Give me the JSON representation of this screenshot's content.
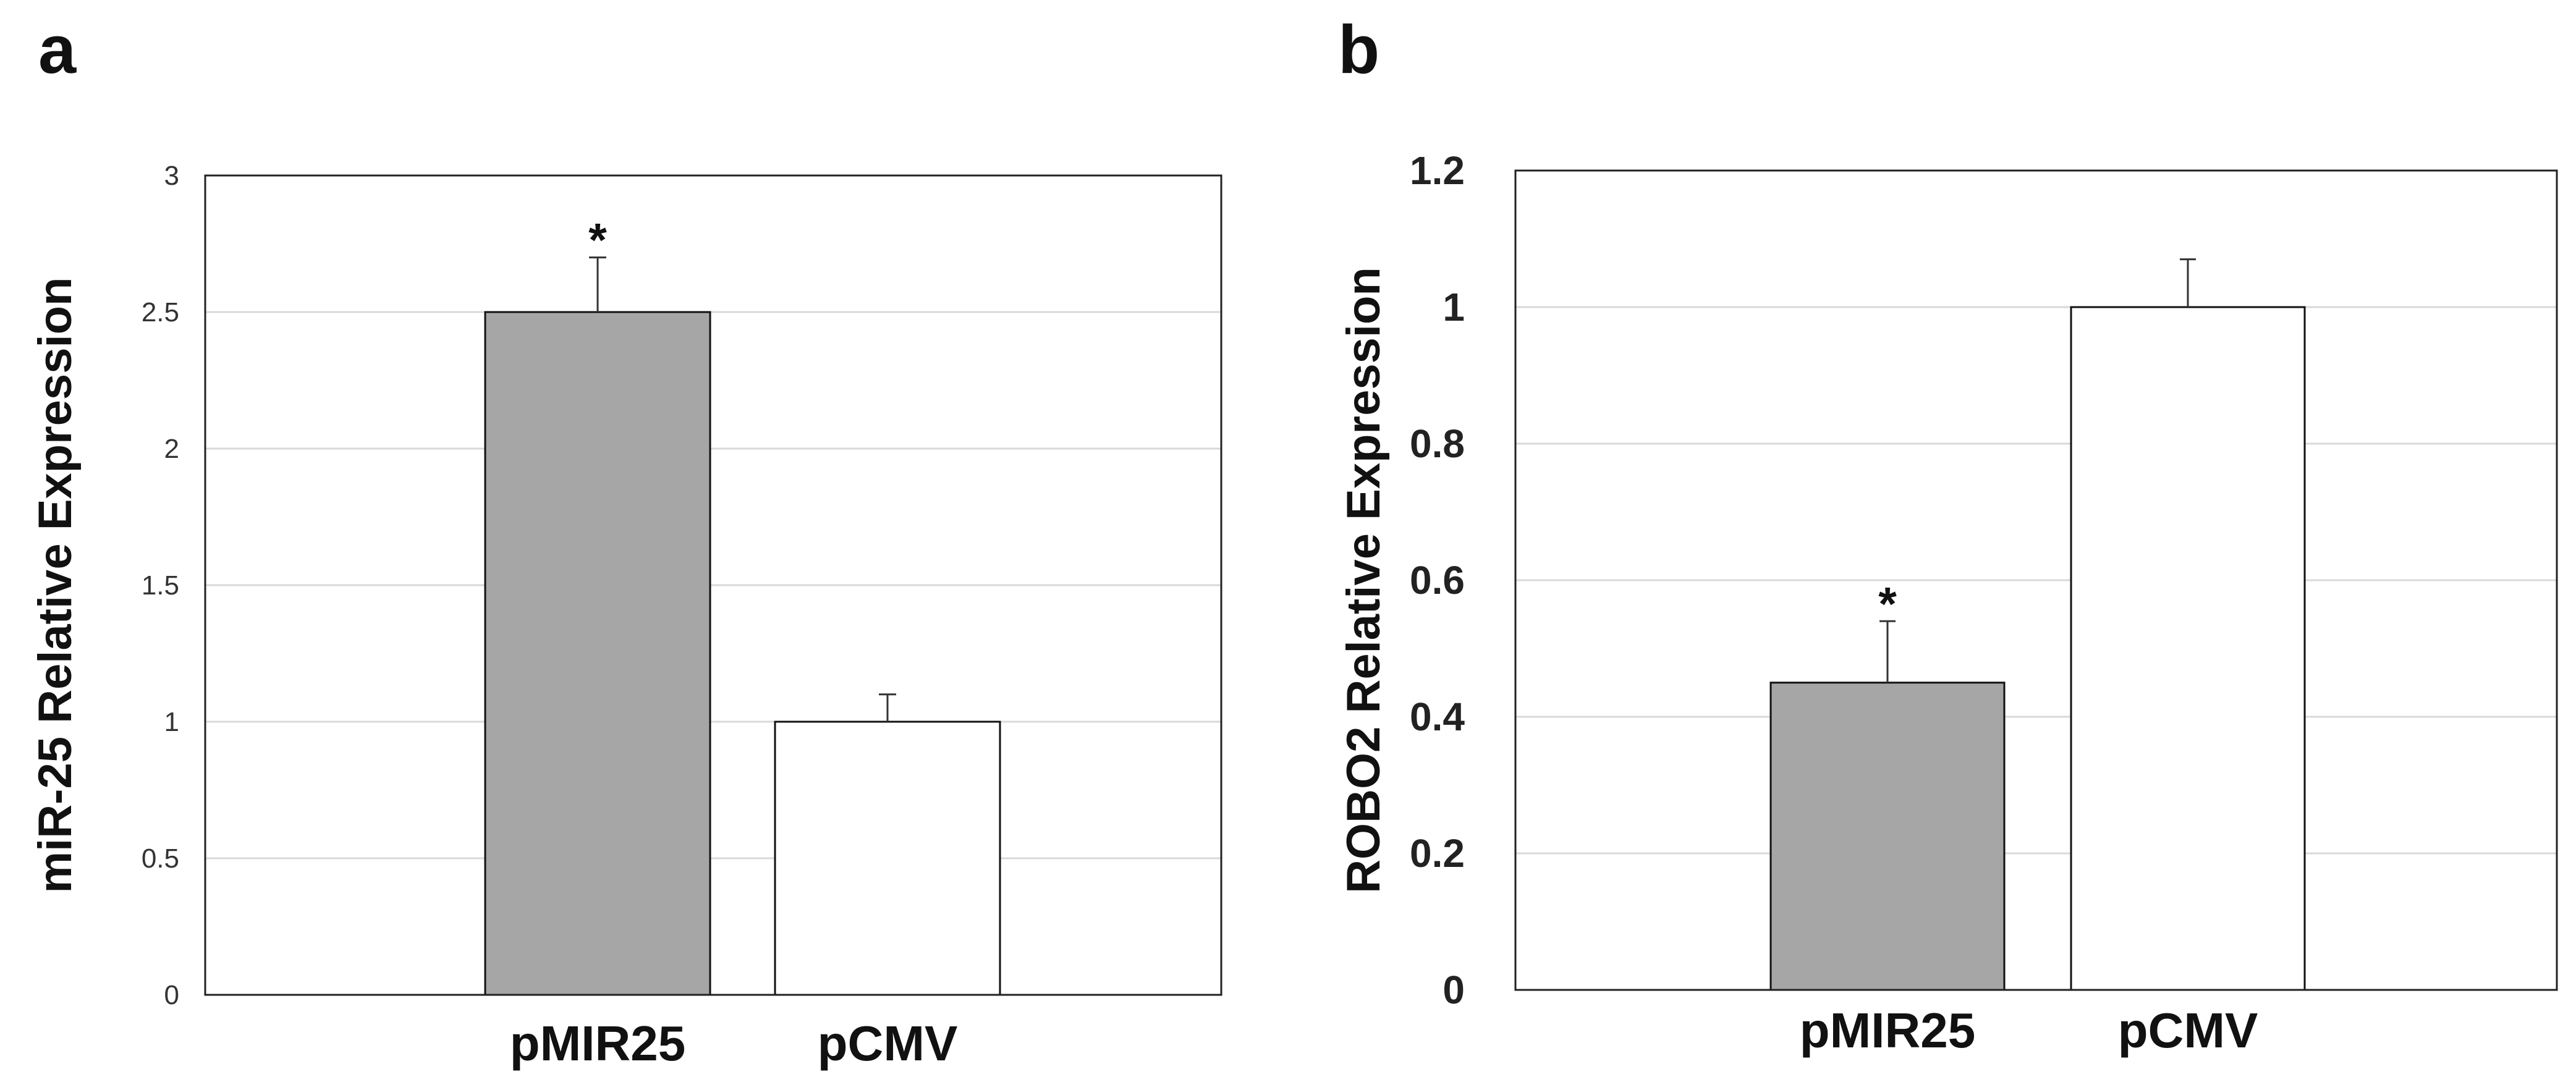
{
  "chart_data": [
    {
      "panel": "a",
      "type": "bar",
      "ylabel": "miR-25 Relative Expression",
      "categories": [
        "pMIR25",
        "pCMV"
      ],
      "values": [
        2.5,
        1.0
      ],
      "errors": [
        0.2,
        0.1
      ],
      "bar_colors": [
        "#a6a6a6",
        "#ffffff"
      ],
      "significance": [
        "*",
        ""
      ],
      "ylim": [
        0,
        3
      ],
      "yticks": [
        0,
        0.5,
        1,
        1.5,
        2,
        2.5,
        3
      ],
      "ytick_labels": [
        "0",
        "0.5",
        "1",
        "1.5",
        "2",
        "2.5",
        "3"
      ],
      "grid": true
    },
    {
      "panel": "b",
      "type": "bar",
      "ylabel": "ROBO2 Relative Expression",
      "categories": [
        "pMIR25",
        "pCMV"
      ],
      "values": [
        0.45,
        1.0
      ],
      "errors": [
        0.09,
        0.07
      ],
      "bar_colors": [
        "#a6a6a6",
        "#ffffff"
      ],
      "significance": [
        "*",
        ""
      ],
      "ylim": [
        0,
        1.2
      ],
      "yticks": [
        0,
        0.2,
        0.4,
        0.6,
        0.8,
        1,
        1.2
      ],
      "ytick_labels": [
        "0",
        "0.2",
        "0.4",
        "0.6",
        "0.8",
        "1",
        "1.2"
      ],
      "grid": true
    }
  ]
}
